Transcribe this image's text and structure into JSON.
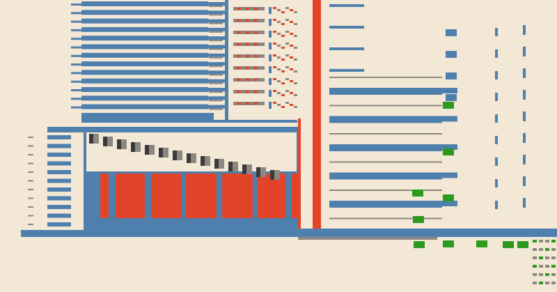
{
  "palette": {
    "background": "#f3e7d6",
    "blue": "#4f80ad",
    "red": "#e2442a",
    "green": "#2b9a1f",
    "gray": "#8c8780",
    "dark": "#3a3a3a"
  }
}
